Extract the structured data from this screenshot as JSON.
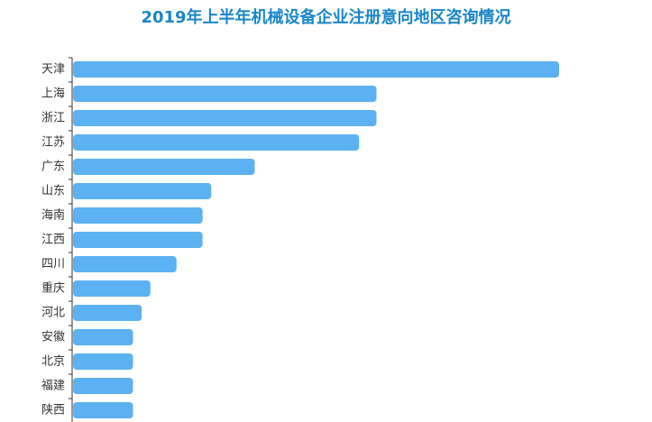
{
  "chart_data": {
    "type": "bar",
    "orientation": "horizontal",
    "title": "2019年上半年机械设备企业注册意向地区咨询情况",
    "categories": [
      "天津",
      "上海",
      "浙江",
      "江苏",
      "广东",
      "山东",
      "海南",
      "江西",
      "四川",
      "重庆",
      "河北",
      "安徽",
      "北京",
      "福建",
      "陕西"
    ],
    "values": [
      56,
      35,
      35,
      33,
      21,
      16,
      15,
      15,
      12,
      9,
      8,
      7,
      7,
      7,
      7
    ],
    "xlim": [
      0,
      56
    ],
    "xlabel": "",
    "ylabel": "",
    "grid": false,
    "legend": "none",
    "colors": {
      "bar": "#5bb1f2",
      "title": "#1a86c8",
      "axis": "#333333"
    }
  }
}
